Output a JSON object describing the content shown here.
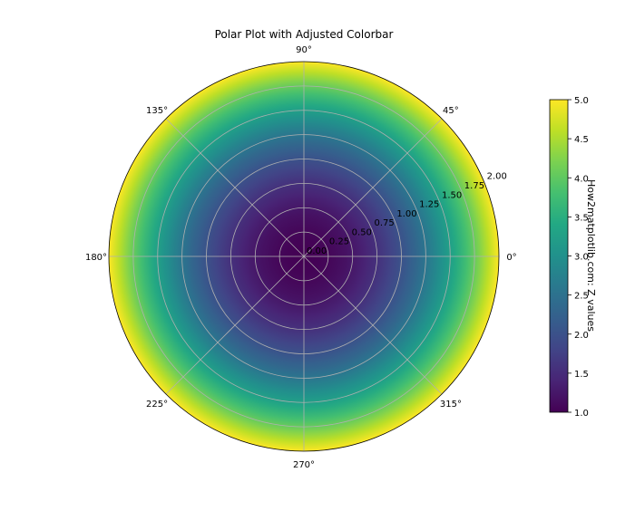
{
  "chart_data": {
    "type": "heatmap",
    "projection": "polar",
    "title": "Polar Plot with Adjusted Colorbar",
    "colormap": "viridis",
    "z_function_of_r": "Z = 1 + r^2",
    "r_range": [
      0,
      2.0
    ],
    "r_ticks": [
      "0.00",
      "0.25",
      "0.50",
      "0.75",
      "1.00",
      "1.25",
      "1.50",
      "1.75",
      "2.00"
    ],
    "r_tick_values": [
      0,
      0.25,
      0.5,
      0.75,
      1.0,
      1.25,
      1.5,
      1.75,
      2.0
    ],
    "theta_ticks": [
      "0°",
      "45°",
      "90°",
      "135°",
      "180°",
      "225°",
      "270°",
      "315°"
    ],
    "theta_tick_values": [
      0,
      45,
      90,
      135,
      180,
      225,
      270,
      315
    ],
    "grid": true,
    "colorbar": {
      "label": "How2matplotlib.com: Z values",
      "range": [
        1.0,
        5.0
      ],
      "ticks": [
        "1.0",
        "1.5",
        "2.0",
        "2.5",
        "3.0",
        "3.5",
        "4.0",
        "4.5",
        "5.0"
      ],
      "tick_values": [
        1.0,
        1.5,
        2.0,
        2.5,
        3.0,
        3.5,
        4.0,
        4.5,
        5.0
      ],
      "placement": "right"
    }
  }
}
